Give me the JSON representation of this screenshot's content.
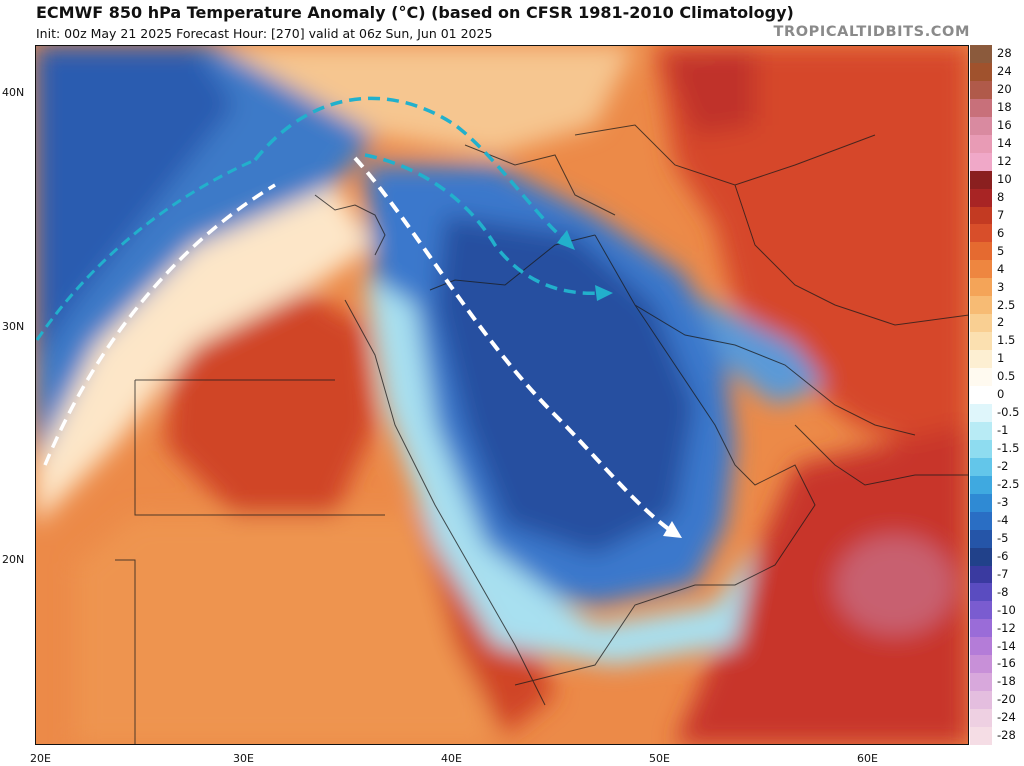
{
  "header": {
    "title": "ECMWF 850 hPa Temperature Anomaly (°C) (based on CFSR 1981-2010 Climatology)",
    "subtitle": "Init: 00z May 21 2025   Forecast Hour: [270]   valid at 06z Sun, Jun 01 2025",
    "credit": "TROPICALTIDBITS.COM"
  },
  "axes": {
    "lat_labels": [
      "40N",
      "30N",
      "20N"
    ],
    "lon_labels": [
      "20E",
      "30E",
      "40E",
      "50E",
      "60E"
    ]
  },
  "legend": {
    "levels": [
      {
        "label": "28",
        "color": "#8b5a3c"
      },
      {
        "label": "24",
        "color": "#a0522d"
      },
      {
        "label": "20",
        "color": "#b05a4a"
      },
      {
        "label": "18",
        "color": "#c8707a"
      },
      {
        "label": "16",
        "color": "#d98aa0"
      },
      {
        "label": "14",
        "color": "#e89bb5"
      },
      {
        "label": "12",
        "color": "#f0a8c8"
      },
      {
        "label": "10",
        "color": "#8a1f1f"
      },
      {
        "label": "8",
        "color": "#a82424"
      },
      {
        "label": "7",
        "color": "#c33a22"
      },
      {
        "label": "6",
        "color": "#d84e2a"
      },
      {
        "label": "5",
        "color": "#e56a30"
      },
      {
        "label": "4",
        "color": "#ee8640"
      },
      {
        "label": "3",
        "color": "#f4a458"
      },
      {
        "label": "2.5",
        "color": "#f7bb74"
      },
      {
        "label": "2",
        "color": "#f9cf92"
      },
      {
        "label": "1.5",
        "color": "#fbe0b0"
      },
      {
        "label": "1",
        "color": "#fdefd2"
      },
      {
        "label": "0.5",
        "color": "#fffaf0"
      },
      {
        "label": "0",
        "color": "#ffffff"
      },
      {
        "label": "-0.5",
        "color": "#dff6fb"
      },
      {
        "label": "-1",
        "color": "#b8ebf5"
      },
      {
        "label": "-1.5",
        "color": "#8edcf0"
      },
      {
        "label": "-2",
        "color": "#63c6ea"
      },
      {
        "label": "-2.5",
        "color": "#3fa9e0"
      },
      {
        "label": "-3",
        "color": "#2f8ad4"
      },
      {
        "label": "-4",
        "color": "#2a6ec4"
      },
      {
        "label": "-5",
        "color": "#2555a8"
      },
      {
        "label": "-6",
        "color": "#21418a"
      },
      {
        "label": "-7",
        "color": "#3a3aa0"
      },
      {
        "label": "-8",
        "color": "#5a4cc0"
      },
      {
        "label": "-10",
        "color": "#7a5cd0"
      },
      {
        "label": "-12",
        "color": "#9a6cd8"
      },
      {
        "label": "-14",
        "color": "#b47cd8"
      },
      {
        "label": "-16",
        "color": "#c890d8"
      },
      {
        "label": "-18",
        "color": "#d8a8dc"
      },
      {
        "label": "-20",
        "color": "#e4bedf"
      },
      {
        "label": "-24",
        "color": "#eed0e2"
      },
      {
        "label": "-28",
        "color": "#f5dde5"
      }
    ]
  },
  "colors": {
    "warm": "#d84e2a",
    "cold": "#2555a8",
    "arrow_white": "#ffffff",
    "arrow_cyan": "#22b0cc"
  }
}
